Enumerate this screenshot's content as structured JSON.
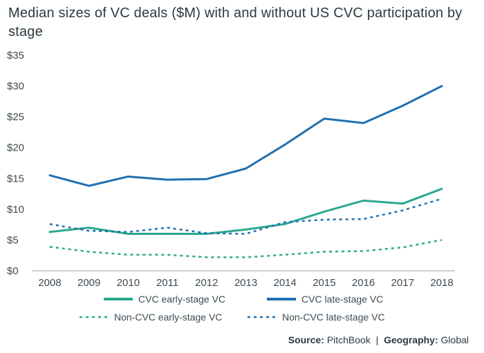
{
  "title": "Median sizes of VC deals ($M) with and without US CVC participation by stage",
  "source": {
    "source_label": "Source:",
    "source_value": "PitchBook",
    "separator": "|",
    "geo_label": "Geography:",
    "geo_value": "Global"
  },
  "colors": {
    "teal": "#2aa88f",
    "blue": "#1f6fb0",
    "axis": "#9aa4aa",
    "text": "#3d4a52"
  },
  "chart_data": {
    "type": "line",
    "title": "Median sizes of VC deals ($M) with and without US CVC participation by stage",
    "xlabel": "",
    "ylabel": "",
    "x": [
      "2008",
      "2009",
      "2010",
      "2011",
      "2012",
      "2013",
      "2014",
      "2015",
      "2016",
      "2017",
      "2018"
    ],
    "y_ticks": [
      "$0",
      "$5",
      "$10",
      "$15",
      "$20",
      "$25",
      "$30",
      "$35"
    ],
    "ylim": [
      0,
      35
    ],
    "grid": false,
    "legend_position": "bottom",
    "series": [
      {
        "name": "CVC early-stage VC",
        "color": "#2aa88f",
        "style": "solid",
        "values": [
          6.3,
          7.0,
          6.0,
          6.0,
          6.0,
          6.7,
          7.6,
          9.6,
          11.4,
          10.9,
          13.3
        ]
      },
      {
        "name": "CVC late-stage VC",
        "color": "#1f6fb0",
        "style": "solid",
        "values": [
          15.5,
          13.8,
          15.3,
          14.8,
          14.9,
          16.6,
          20.5,
          24.7,
          24.0,
          26.8,
          30.0
        ]
      },
      {
        "name": "Non-CVC early-stage VC",
        "color": "#2aa88f",
        "style": "dotted",
        "values": [
          3.9,
          3.1,
          2.6,
          2.6,
          2.2,
          2.2,
          2.6,
          3.1,
          3.2,
          3.8,
          5.0
        ]
      },
      {
        "name": "Non-CVC late-stage VC",
        "color": "#1f6fb0",
        "style": "dotted",
        "values": [
          7.6,
          6.5,
          6.3,
          7.0,
          6.1,
          6.0,
          7.9,
          8.3,
          8.4,
          9.8,
          11.7
        ]
      }
    ]
  }
}
